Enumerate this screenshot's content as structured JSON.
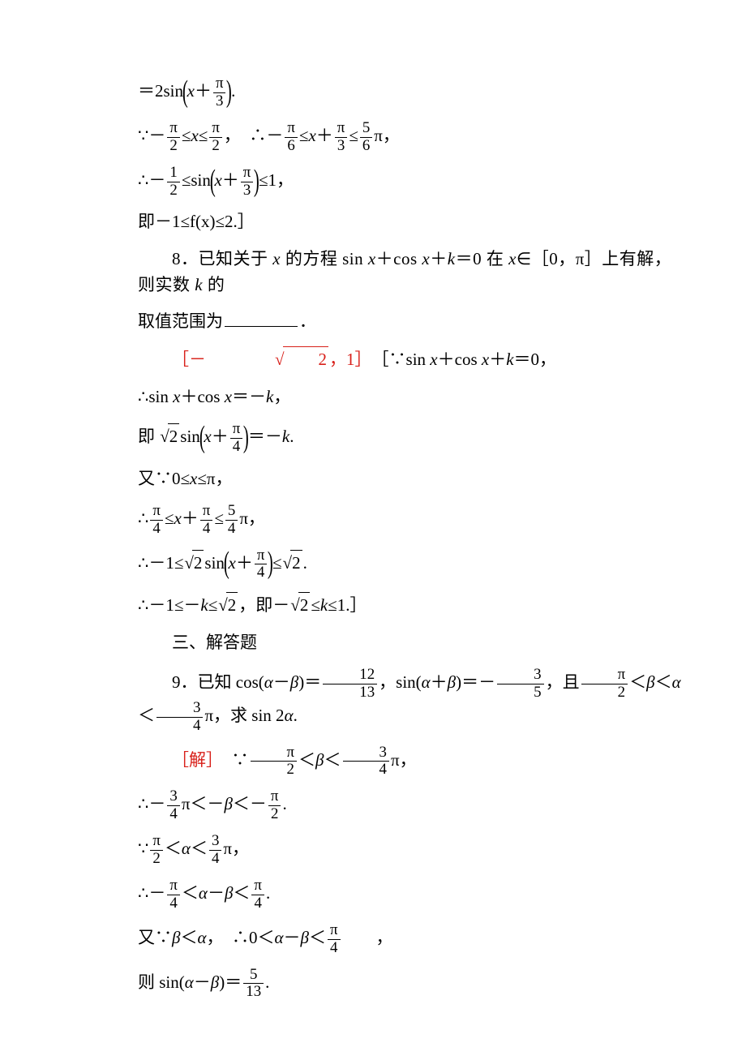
{
  "colors": {
    "text": "#000000",
    "red": "#d8201a",
    "background": "#ffffff",
    "underline": "#000000"
  },
  "typography": {
    "base_fontsize_pt": 16,
    "math_font": "Times New Roman / SimSun",
    "line_height": 1.5
  },
  "lines": {
    "l01a": "＝2sin",
    "l01b": ".",
    "l02a": "∵－",
    "l02b": "≤",
    "l02c": "≤",
    "l02d": "，　∴－",
    "l02e": "≤",
    "l02f": "＋",
    "l02g": "≤",
    "l02h": "π，",
    "l03a": "∴－",
    "l03b": "≤sin",
    "l03c": "≤1，",
    "l04": "即－1≤f(x)≤2.］",
    "l05a": "8．已知关于 ",
    "l05b": " 的方程 sin ",
    "l05c": "＋cos ",
    "l05d": "＋",
    "l05e": "＝0 在 ",
    "l05f": "∈［0，π］上有解，则实数 ",
    "l05g": " 的",
    "l06": "取值范围为",
    "l06b": "．",
    "l07a": "［－",
    "l07b": "，1］",
    "l07c": "　［∵sin ",
    "l07d": "＋cos ",
    "l07e": "＋",
    "l07f": "＝0，",
    "l08a": "∴sin ",
    "l08b": "＋cos ",
    "l08c": "＝－",
    "l08d": "，",
    "l09a": "即 ",
    "l09b": "sin",
    "l09c": "＝－",
    "l09d": ".",
    "l10a": "又∵0≤",
    "l10b": "≤π，",
    "l11a": "∴",
    "l11b": "≤",
    "l11c": "＋",
    "l11d": "≤",
    "l11e": "π，",
    "l12a": "∴－1≤",
    "l12b": "sin",
    "l12c": "≤",
    "l12d": ".",
    "l13a": "∴－1≤－",
    "l13b": "≤",
    "l13c": "，即－",
    "l13d": "≤",
    "l13e": "≤1.］",
    "l14": "三、解答题",
    "l15a": "9．已知 cos(",
    "l15b": "－",
    "l15c": ")＝",
    "l15d": "，sin(",
    "l15e": "＋",
    "l15f": ")＝－",
    "l15g": "，且",
    "l15h": "＜",
    "l15i": "＜",
    "l15j": "＜",
    "l15k": "π，求 sin 2",
    "l15l": ".",
    "l16a": "［解］",
    "l16b": "　∵",
    "l16c": "＜",
    "l16d": "＜",
    "l16e": "π，",
    "l17a": "∴－",
    "l17b": "π＜－",
    "l17c": "＜－",
    "l17d": ".",
    "l18a": "∵",
    "l18b": "＜",
    "l18c": "＜",
    "l18d": "π，",
    "l19a": "∴－",
    "l19b": "＜",
    "l19c": "－",
    "l19d": "＜",
    "l19e": ".",
    "l20a": "又∵",
    "l20b": "＜",
    "l20c": "，　∴0＜",
    "l20d": "－",
    "l20e": "＜",
    "l20f": "　　，",
    "l21a": "则 sin(",
    "l21b": "－",
    "l21c": ")＝",
    "l21d": "."
  },
  "fractions": {
    "pi_3": {
      "num": "π",
      "den": "3"
    },
    "pi_2": {
      "num": "π",
      "den": "2"
    },
    "pi_6": {
      "num": "π",
      "den": "6"
    },
    "5_6": {
      "num": "5",
      "den": "6"
    },
    "1_2": {
      "num": "1",
      "den": "2"
    },
    "pi_4": {
      "num": "π",
      "den": "4"
    },
    "5_4": {
      "num": "5",
      "den": "4"
    },
    "12_13": {
      "num": "12",
      "den": "13"
    },
    "3_5": {
      "num": "3",
      "den": "5"
    },
    "3_4": {
      "num": "3",
      "den": "4"
    },
    "5_13": {
      "num": "5",
      "den": "13"
    }
  },
  "vars": {
    "x": "x",
    "k": "k",
    "alpha": "α",
    "beta": "β"
  },
  "sqrt": {
    "two": "2"
  }
}
